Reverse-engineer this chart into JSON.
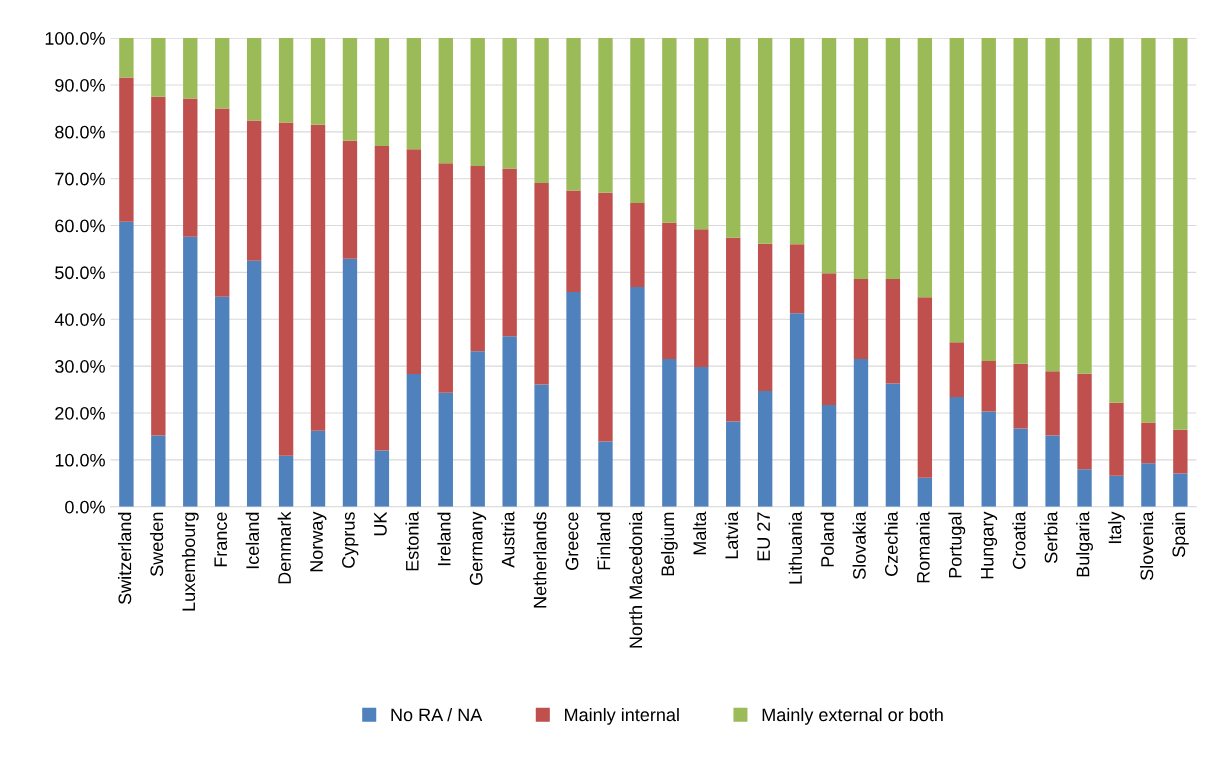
{
  "chart_data": {
    "type": "bar",
    "stacked": true,
    "categories": [
      "Switzerland",
      "Sweden",
      "Luxembourg",
      "France",
      "Iceland",
      "Denmark",
      "Norway",
      "Cyprus",
      "UK",
      "Estonia",
      "Ireland",
      "Germany",
      "Austria",
      "Netherlands",
      "Greece",
      "Finland",
      "North Macedonia",
      "Belgium",
      "Malta",
      "Latvia",
      "EU 27",
      "Lithuania",
      "Poland",
      "Slovakia",
      "Czechia",
      "Romania",
      "Portugal",
      "Hungary",
      "Croatia",
      "Serbia",
      "Bulgaria",
      "Italy",
      "Slovenia",
      "Spain"
    ],
    "series": [
      {
        "name": "No RA / NA",
        "color": "#4f81bd",
        "values": [
          60.8,
          15.2,
          57.6,
          44.8,
          52.5,
          10.9,
          16.2,
          52.9,
          12.0,
          28.3,
          24.3,
          33.2,
          36.4,
          26.1,
          45.8,
          13.9,
          46.9,
          31.5,
          29.8,
          18.2,
          24.7,
          41.3,
          21.7,
          31.5,
          26.3,
          6.2,
          23.4,
          20.3,
          16.7,
          15.2,
          8.0,
          6.6,
          9.3,
          7.1
        ]
      },
      {
        "name": "Mainly internal",
        "color": "#c0504d",
        "values": [
          30.8,
          72.3,
          29.5,
          40.2,
          29.9,
          71.1,
          65.3,
          25.2,
          65.0,
          48.0,
          49.0,
          39.5,
          35.8,
          43.0,
          21.7,
          53.1,
          17.9,
          29.1,
          29.4,
          39.2,
          31.4,
          14.7,
          28.1,
          17.1,
          22.3,
          38.5,
          11.7,
          10.8,
          13.8,
          13.7,
          20.4,
          15.6,
          8.7,
          9.3
        ]
      },
      {
        "name": "Mainly external or both",
        "color": "#9bbb59",
        "values": [
          8.4,
          12.5,
          12.9,
          15.0,
          17.6,
          18.0,
          18.5,
          21.9,
          23.0,
          23.7,
          26.7,
          27.3,
          27.8,
          30.9,
          32.5,
          33.0,
          35.2,
          39.4,
          40.8,
          42.6,
          43.9,
          44.0,
          50.2,
          51.4,
          51.4,
          55.3,
          64.9,
          68.9,
          69.5,
          71.1,
          71.6,
          77.8,
          82.0,
          83.6
        ]
      }
    ],
    "ylim": [
      0,
      100
    ],
    "yticks": [
      {
        "value": 0,
        "label": "0.0%"
      },
      {
        "value": 10,
        "label": "10.0%"
      },
      {
        "value": 20,
        "label": "20.0%"
      },
      {
        "value": 30,
        "label": "30.0%"
      },
      {
        "value": 40,
        "label": "40.0%"
      },
      {
        "value": 50,
        "label": "50.0%"
      },
      {
        "value": 60,
        "label": "60.0%"
      },
      {
        "value": 70,
        "label": "70.0%"
      },
      {
        "value": 80,
        "label": "80.0%"
      },
      {
        "value": 90,
        "label": "90.0%"
      },
      {
        "value": 100,
        "label": "100.0%"
      }
    ],
    "grid": "y",
    "legend": "bottom"
  }
}
